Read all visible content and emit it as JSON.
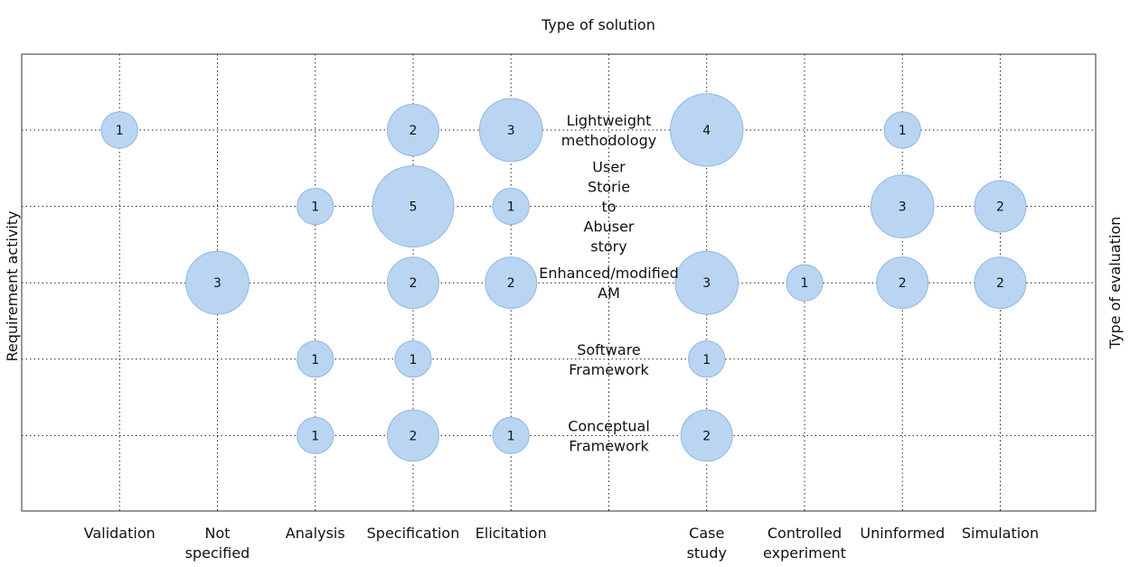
{
  "chart_data": {
    "type": "bubble",
    "title_top": "Type of solution",
    "ylabel_left": "Requirement activity",
    "ylabel_right": "Type of evaluation",
    "grid": "dotted",
    "x_categories": [
      {
        "label": [
          "Validation"
        ],
        "x": 1
      },
      {
        "label": [
          "Not",
          "specified"
        ],
        "x": 2
      },
      {
        "label": [
          "Analysis"
        ],
        "x": 3
      },
      {
        "label": [
          "Specification"
        ],
        "x": 4
      },
      {
        "label": [
          "Elicitation"
        ],
        "x": 5
      },
      {
        "label": [
          "Case",
          "study"
        ],
        "x": 7
      },
      {
        "label": [
          "Controlled",
          "experiment"
        ],
        "x": 8
      },
      {
        "label": [
          "Uninformed"
        ],
        "x": 9
      },
      {
        "label": [
          "Simulation"
        ],
        "x": 10
      }
    ],
    "y_categories": [
      {
        "label": [
          "Lightweight",
          "methodology"
        ],
        "y": 5
      },
      {
        "label": [
          "User",
          "Storie",
          "to",
          "Abuser",
          "story"
        ],
        "y": 4
      },
      {
        "label": [
          "Enhanced/modified",
          "AM"
        ],
        "y": 3
      },
      {
        "label": [
          "Software",
          "Framework"
        ],
        "y": 2
      },
      {
        "label": [
          "Conceptual",
          "Framework"
        ],
        "y": 1
      }
    ],
    "points": [
      {
        "x": 1,
        "y": 5,
        "value": 1
      },
      {
        "x": 4,
        "y": 5,
        "value": 2
      },
      {
        "x": 5,
        "y": 5,
        "value": 3
      },
      {
        "x": 7,
        "y": 5,
        "value": 4
      },
      {
        "x": 9,
        "y": 5,
        "value": 1
      },
      {
        "x": 3,
        "y": 4,
        "value": 1
      },
      {
        "x": 4,
        "y": 4,
        "value": 5
      },
      {
        "x": 5,
        "y": 4,
        "value": 1
      },
      {
        "x": 9,
        "y": 4,
        "value": 3
      },
      {
        "x": 10,
        "y": 4,
        "value": 2
      },
      {
        "x": 2,
        "y": 3,
        "value": 3
      },
      {
        "x": 4,
        "y": 3,
        "value": 2
      },
      {
        "x": 5,
        "y": 3,
        "value": 2
      },
      {
        "x": 7,
        "y": 3,
        "value": 3
      },
      {
        "x": 8,
        "y": 3,
        "value": 1
      },
      {
        "x": 9,
        "y": 3,
        "value": 2
      },
      {
        "x": 10,
        "y": 3,
        "value": 2
      },
      {
        "x": 3,
        "y": 2,
        "value": 1
      },
      {
        "x": 4,
        "y": 2,
        "value": 1
      },
      {
        "x": 7,
        "y": 2,
        "value": 1
      },
      {
        "x": 3,
        "y": 1,
        "value": 1
      },
      {
        "x": 4,
        "y": 1,
        "value": 2
      },
      {
        "x": 5,
        "y": 1,
        "value": 1
      },
      {
        "x": 7,
        "y": 1,
        "value": 2
      }
    ],
    "bubble_fill": "#b9d5f2",
    "bubble_stroke": "#8fb7e6"
  }
}
